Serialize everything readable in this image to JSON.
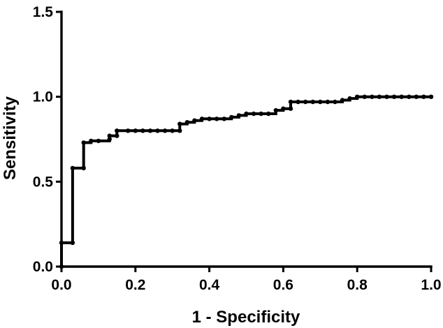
{
  "chart_data": {
    "type": "line",
    "title": "",
    "xlabel": "1 - Specificity",
    "ylabel": "Sensitivity",
    "xlim": [
      0,
      1.0
    ],
    "ylim": [
      0,
      1.5
    ],
    "x_ticks": [
      0.0,
      0.2,
      0.4,
      0.6,
      0.8,
      1.0
    ],
    "x_tick_labels": [
      "0.0",
      "0.2",
      "0.4",
      "0.6",
      "0.8",
      "1.0"
    ],
    "y_ticks": [
      0.0,
      0.5,
      1.0,
      1.5
    ],
    "y_tick_labels": [
      "0.0",
      "0.5",
      "1.0",
      "1.5"
    ],
    "grid": false,
    "legend": "none",
    "line_color": "#000000",
    "series": [
      {
        "step": true,
        "x": [
          0.0,
          0.0,
          0.03,
          0.03,
          0.06,
          0.06,
          0.08,
          0.1,
          0.13,
          0.13,
          0.15,
          0.15,
          0.18,
          0.2,
          0.22,
          0.24,
          0.26,
          0.28,
          0.3,
          0.32,
          0.32,
          0.34,
          0.36,
          0.38,
          0.4,
          0.42,
          0.44,
          0.46,
          0.48,
          0.5,
          0.52,
          0.54,
          0.56,
          0.58,
          0.6,
          0.62,
          0.62,
          0.64,
          0.66,
          0.68,
          0.7,
          0.72,
          0.74,
          0.76,
          0.78,
          0.8,
          0.82,
          0.84,
          0.86,
          0.88,
          0.9,
          0.92,
          0.94,
          0.96,
          0.98,
          1.0
        ],
        "y": [
          0.0,
          0.14,
          0.14,
          0.58,
          0.58,
          0.73,
          0.74,
          0.74,
          0.75,
          0.77,
          0.77,
          0.8,
          0.8,
          0.8,
          0.8,
          0.8,
          0.8,
          0.8,
          0.8,
          0.8,
          0.84,
          0.85,
          0.86,
          0.87,
          0.87,
          0.87,
          0.87,
          0.88,
          0.89,
          0.9,
          0.9,
          0.9,
          0.9,
          0.92,
          0.93,
          0.93,
          0.97,
          0.97,
          0.97,
          0.97,
          0.97,
          0.97,
          0.97,
          0.98,
          0.99,
          1.0,
          1.0,
          1.0,
          1.0,
          1.0,
          1.0,
          1.0,
          1.0,
          1.0,
          1.0,
          1.0
        ]
      }
    ]
  }
}
